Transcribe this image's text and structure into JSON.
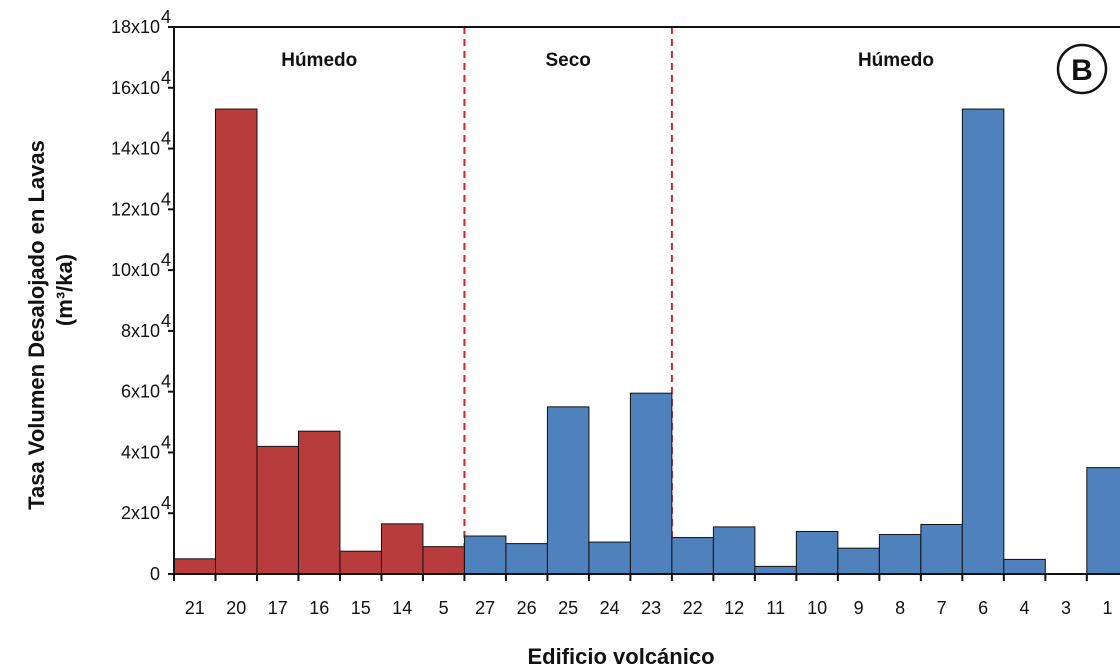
{
  "chart_data": {
    "type": "bar",
    "title": "",
    "xlabel": "Edificio volcánico",
    "ylabel": "Tasa Volumen Desalojado en Lavas",
    "ylabel_unit": "(m³/ka)",
    "panel_label": "B",
    "ylim": [
      0,
      180000
    ],
    "yticks": [
      {
        "value": 0,
        "label": "0",
        "exp": ""
      },
      {
        "value": 20000,
        "label": "2x10",
        "exp": "4"
      },
      {
        "value": 40000,
        "label": "4x10",
        "exp": "4"
      },
      {
        "value": 60000,
        "label": "6x10",
        "exp": "4"
      },
      {
        "value": 80000,
        "label": "8x10",
        "exp": "4"
      },
      {
        "value": 100000,
        "label": "10x10",
        "exp": "4"
      },
      {
        "value": 120000,
        "label": "12x10",
        "exp": "4"
      },
      {
        "value": 140000,
        "label": "14x10",
        "exp": "4"
      },
      {
        "value": 160000,
        "label": "16x10",
        "exp": "4"
      },
      {
        "value": 180000,
        "label": "18x10",
        "exp": "4"
      }
    ],
    "categories": [
      "21",
      "20",
      "17",
      "16",
      "15",
      "14",
      "5",
      "27",
      "26",
      "25",
      "24",
      "23",
      "22",
      "12",
      "11",
      "10",
      "9",
      "8",
      "7",
      "6",
      "4",
      "3",
      "1"
    ],
    "values": [
      5000,
      153000,
      42000,
      47000,
      7500,
      16500,
      9000,
      12500,
      10000,
      55000,
      10500,
      59500,
      12000,
      15500,
      2500,
      14000,
      8500,
      13000,
      16300,
      153000,
      4800,
      0,
      35000
    ],
    "colors": [
      "#b83c3c",
      "#b83c3c",
      "#b83c3c",
      "#b83c3c",
      "#b83c3c",
      "#b83c3c",
      "#b83c3c",
      "#4f81bd",
      "#4f81bd",
      "#4f81bd",
      "#4f81bd",
      "#4f81bd",
      "#4f81bd",
      "#4f81bd",
      "#4f81bd",
      "#4f81bd",
      "#4f81bd",
      "#4f81bd",
      "#4f81bd",
      "#4f81bd",
      "#4f81bd",
      "#4f81bd",
      "#4f81bd"
    ],
    "regions": [
      {
        "label": "Húmedo",
        "from": "21",
        "to": "5"
      },
      {
        "label": "Seco",
        "from": "27",
        "to": "23"
      },
      {
        "label": "Húmedo",
        "from": "22",
        "to": "1"
      }
    ],
    "divider_color": "#e02020",
    "grid": false,
    "legend": "none"
  }
}
